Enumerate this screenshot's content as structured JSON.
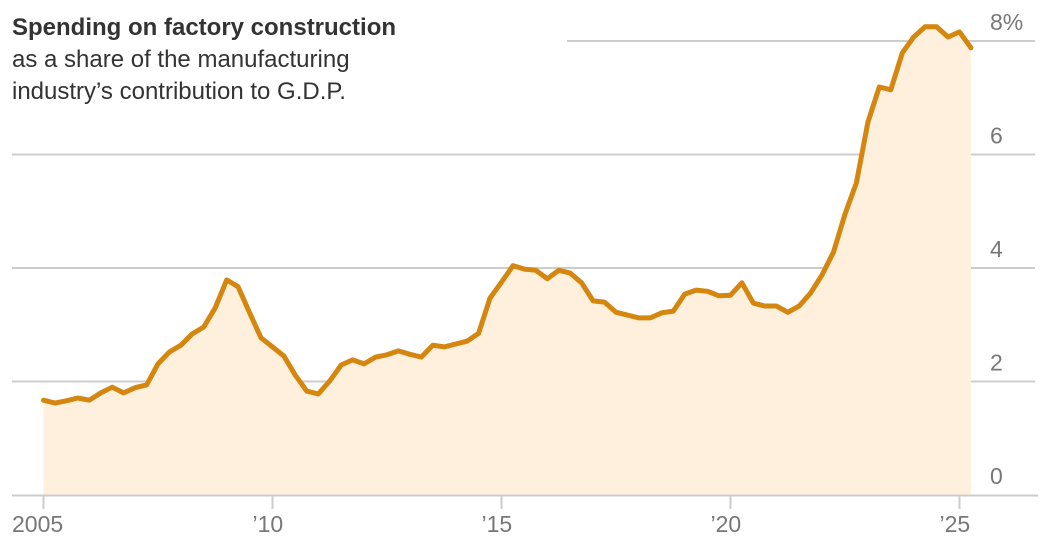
{
  "chart_data": {
    "type": "area",
    "title": "Spending on factory construction",
    "subtitle_lines": [
      "as a share of the manufacturing",
      "industry’s contribution to G.D.P."
    ],
    "xlabel": "",
    "ylabel": "",
    "xlim": [
      2005,
      2025.25
    ],
    "ylim": [
      0,
      8
    ],
    "y_ticks": [
      0,
      2,
      4,
      6,
      8
    ],
    "y_tick_labels": [
      "0",
      "2",
      "4",
      "6",
      "8%"
    ],
    "x_ticks": [
      2005,
      2010,
      2015,
      2020,
      2025
    ],
    "x_tick_labels": [
      "2005",
      "’10",
      "’15",
      "’20",
      "’25"
    ],
    "grid": "horizontal",
    "line_color": "#d4860f",
    "fill_color": "#fef0dc",
    "x_start": 2005,
    "x_step": 0.25,
    "values": [
      1.67,
      1.62,
      1.66,
      1.71,
      1.67,
      1.8,
      1.9,
      1.8,
      1.89,
      1.94,
      2.31,
      2.52,
      2.64,
      2.84,
      2.96,
      3.3,
      3.79,
      3.67,
      3.21,
      2.77,
      2.61,
      2.45,
      2.11,
      1.83,
      1.78,
      2.01,
      2.29,
      2.38,
      2.31,
      2.43,
      2.47,
      2.54,
      2.48,
      2.43,
      2.64,
      2.61,
      2.66,
      2.71,
      2.85,
      3.47,
      3.75,
      4.04,
      3.98,
      3.96,
      3.81,
      3.96,
      3.91,
      3.74,
      3.42,
      3.4,
      3.22,
      3.17,
      3.12,
      3.12,
      3.21,
      3.24,
      3.54,
      3.61,
      3.59,
      3.51,
      3.52,
      3.74,
      3.38,
      3.33,
      3.33,
      3.22,
      3.33,
      3.56,
      3.88,
      4.28,
      4.95,
      5.5,
      6.57,
      7.19,
      7.14,
      7.79,
      8.07,
      8.25,
      8.25,
      8.07,
      8.16,
      7.88
    ]
  }
}
